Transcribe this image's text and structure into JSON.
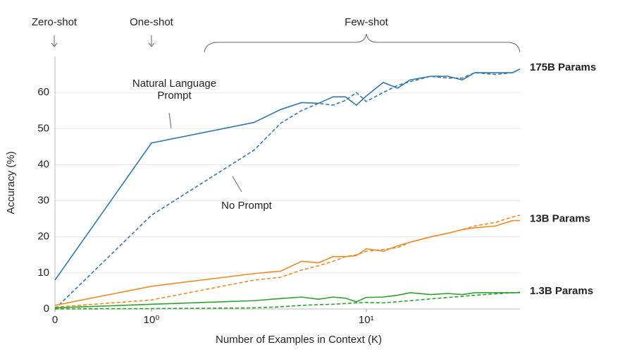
{
  "chart_data": {
    "type": "line",
    "xscale": "symlog",
    "x": [
      0,
      1,
      3,
      4,
      5,
      6,
      7,
      8,
      9,
      10,
      12,
      14,
      16,
      20,
      24,
      28,
      32,
      40,
      48,
      52
    ],
    "xlim": [
      0,
      52
    ],
    "xticks": [
      0,
      {
        "value": 1,
        "label": "10⁰"
      },
      {
        "value": 10,
        "label": "10¹"
      }
    ],
    "ylim": [
      0,
      70
    ],
    "yticks": [
      0,
      10,
      20,
      30,
      40,
      50,
      60
    ],
    "grid": true,
    "xlabel": "Number of Examples in Context  (K)",
    "ylabel": "Accuracy (%)",
    "series": [
      {
        "name": "175B Params",
        "color": "#2e77b0",
        "style": "solid",
        "values": [
          8,
          46,
          51.7,
          55.3,
          57.2,
          57,
          58.8,
          58.8,
          56.5,
          59,
          62.8,
          61.2,
          63.5,
          64.5,
          64.5,
          63.5,
          65.5,
          65.5,
          65.5,
          66.5
        ]
      },
      {
        "color": "#2e77b0",
        "style": "dashed",
        "values": [
          0,
          26,
          44,
          51.5,
          55,
          57,
          56.5,
          57.8,
          60,
          57.5,
          60,
          62,
          63,
          64.5,
          64,
          64,
          65.5,
          65,
          65.5,
          66.5
        ]
      },
      {
        "name": "13B Params",
        "color": "#f28a22",
        "style": "solid",
        "values": [
          1,
          6.3,
          9.8,
          10.5,
          13.2,
          12.8,
          14.5,
          14.5,
          14.8,
          16.7,
          16,
          17.5,
          18.5,
          20,
          21,
          22,
          22.5,
          23,
          24.5,
          24.5
        ]
      },
      {
        "color": "#f28a22",
        "style": "dashed",
        "values": [
          0.5,
          2.5,
          8,
          8.8,
          10.8,
          12,
          13.2,
          14.5,
          15,
          16,
          16.5,
          17,
          18.5,
          20,
          21,
          22,
          23,
          24,
          25.5,
          26
        ]
      },
      {
        "name": "1.3B Params",
        "color": "#2ca02c",
        "style": "solid",
        "values": [
          0.3,
          1.3,
          2.3,
          2.9,
          3.3,
          2.7,
          3.3,
          3,
          2,
          3.2,
          3.3,
          3.8,
          4.5,
          4,
          4.3,
          4,
          4.5,
          4.5,
          4.5,
          4.5
        ]
      },
      {
        "color": "#2ca02c",
        "style": "dashed",
        "values": [
          0,
          0.1,
          0.3,
          0.6,
          1,
          1.2,
          1.3,
          1.5,
          1.7,
          1.8,
          1.7,
          2,
          2.3,
          2.8,
          3.2,
          3.5,
          3.8,
          4.2,
          4.5,
          4.6
        ]
      }
    ],
    "annotations": {
      "zero_shot": "Zero-shot",
      "one_shot": "One-shot",
      "few_shot": "Few-shot",
      "natural_language_prompt": "Natural Language\nPrompt",
      "no_prompt": "No Prompt"
    }
  }
}
